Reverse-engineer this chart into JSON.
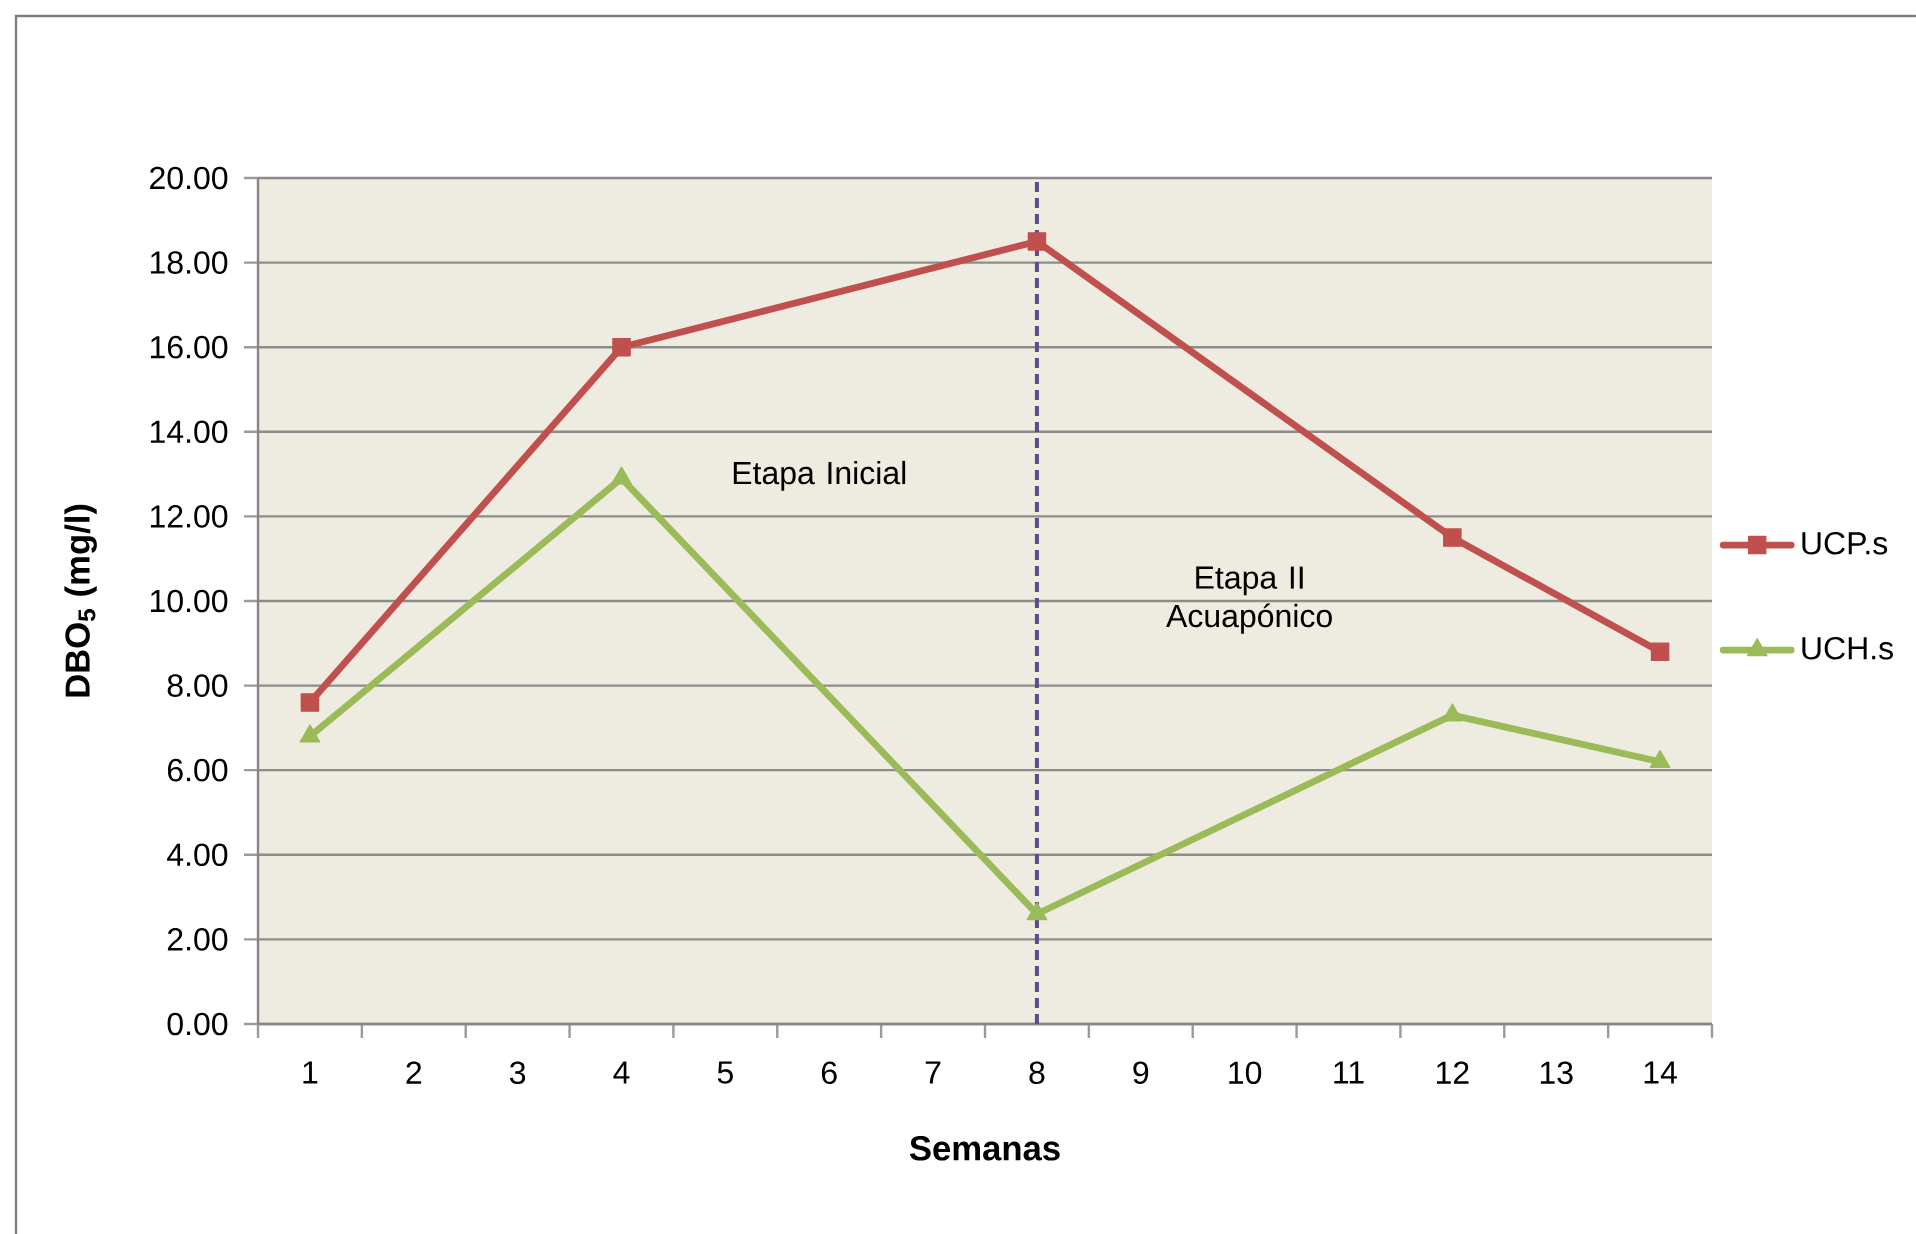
{
  "chart_data": {
    "type": "line",
    "xlabel": "Semanas",
    "ylabel": "DBO$_{5}$ (mg/l)",
    "x": [
      1,
      4,
      8,
      12,
      14
    ],
    "series": [
      {
        "name": "UCP.s",
        "color": "#c0504d",
        "marker": "square",
        "values": [
          7.6,
          16,
          18.5,
          11.5,
          8.8
        ]
      },
      {
        "name": "UCH.s",
        "color": "#9bbb59",
        "marker": "triangle",
        "values": [
          6.8,
          12.9,
          2.6,
          7.3,
          6.2
        ]
      }
    ],
    "xlim": [
      0.5,
      14.5
    ],
    "xticks": [
      1,
      2,
      3,
      4,
      5,
      6,
      7,
      8,
      9,
      10,
      11,
      12,
      13,
      14
    ],
    "ylim": [
      0,
      20
    ],
    "yticks": [
      {
        "value": 0,
        "label": "0.00"
      },
      {
        "value": 2,
        "label": "2.00"
      },
      {
        "value": 4,
        "label": "4.00"
      },
      {
        "value": 6,
        "label": "6.00"
      },
      {
        "value": 8,
        "label": "8.00"
      },
      {
        "value": 10,
        "label": "10.00"
      },
      {
        "value": 12,
        "label": "12.00"
      },
      {
        "value": 14,
        "label": "14.00"
      },
      {
        "value": 16,
        "label": "16.00"
      },
      {
        "value": 18,
        "label": "18.00"
      },
      {
        "value": 20,
        "label": "20.00"
      }
    ],
    "grid": "y",
    "legend": "right",
    "ref_lines": [
      {
        "axis": "x",
        "value": 8,
        "color": "#5f4b8b",
        "line_style": "dashed"
      }
    ],
    "annotations": [
      "Etapa Inicial",
      "Etapa II Acuapónico"
    ]
  }
}
